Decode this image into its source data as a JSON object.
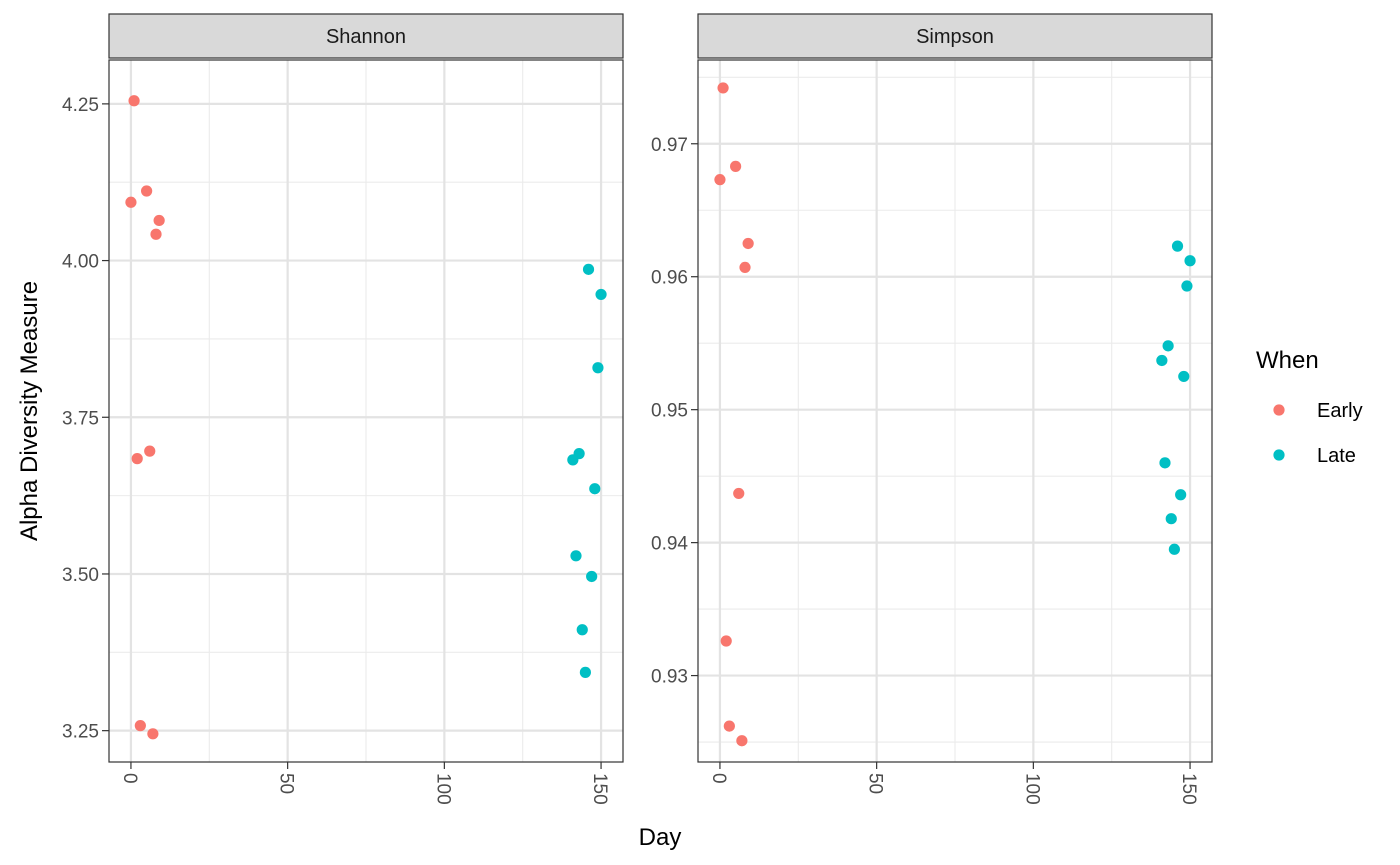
{
  "chart_data": {
    "type": "scatter",
    "xlabel": "Day",
    "ylabel": "Alpha Diversity Measure",
    "legend": {
      "title": "When",
      "position": "right",
      "entries": [
        {
          "label": "Early",
          "color": "#F8766D"
        },
        {
          "label": "Late",
          "color": "#00BFC4"
        }
      ]
    },
    "panels": [
      {
        "strip": "Shannon",
        "xlim": [
          -7,
          157
        ],
        "ylim": [
          3.2,
          4.32
        ],
        "xticks": [
          0,
          50,
          100,
          150
        ],
        "xtick_labels": [
          "0",
          "50",
          "100",
          "150"
        ],
        "yticks": [
          3.25,
          3.5,
          3.75,
          4.0,
          4.25
        ],
        "ytick_labels": [
          "3.25",
          "3.50",
          "3.75",
          "4.00",
          "4.25"
        ],
        "yminor": [
          3.375,
          3.625,
          3.875,
          4.125
        ],
        "series": [
          {
            "name": "Early",
            "color": "#F8766D",
            "points": [
              [
                1,
                4.255
              ],
              [
                0,
                4.093
              ],
              [
                5,
                4.111
              ],
              [
                9,
                4.064
              ],
              [
                8,
                4.042
              ],
              [
                6,
                3.696
              ],
              [
                2,
                3.684
              ],
              [
                3,
                3.258
              ],
              [
                7,
                3.245
              ]
            ]
          },
          {
            "name": "Late",
            "color": "#00BFC4",
            "points": [
              [
                146,
                3.986
              ],
              [
                150,
                3.946
              ],
              [
                149,
                3.829
              ],
              [
                143,
                3.692
              ],
              [
                141,
                3.682
              ],
              [
                148,
                3.636
              ],
              [
                142,
                3.529
              ],
              [
                147,
                3.496
              ],
              [
                144,
                3.411
              ],
              [
                145,
                3.343
              ]
            ]
          }
        ]
      },
      {
        "strip": "Simpson",
        "xlim": [
          -7,
          157
        ],
        "ylim": [
          0.9235,
          0.9763
        ],
        "xticks": [
          0,
          50,
          100,
          150
        ],
        "xtick_labels": [
          "0",
          "50",
          "100",
          "150"
        ],
        "yticks": [
          0.93,
          0.94,
          0.95,
          0.96,
          0.97
        ],
        "ytick_labels": [
          "0.93",
          "0.94",
          "0.95",
          "0.96",
          "0.97"
        ],
        "yminor": [
          0.925,
          0.935,
          0.945,
          0.955,
          0.965,
          0.975
        ],
        "series": [
          {
            "name": "Early",
            "color": "#F8766D",
            "points": [
              [
                1,
                0.9742
              ],
              [
                0,
                0.9673
              ],
              [
                5,
                0.9683
              ],
              [
                9,
                0.9625
              ],
              [
                8,
                0.9607
              ],
              [
                6,
                0.9437
              ],
              [
                2,
                0.9326
              ],
              [
                3,
                0.9262
              ],
              [
                7,
                0.9251
              ]
            ]
          },
          {
            "name": "Late",
            "color": "#00BFC4",
            "points": [
              [
                146,
                0.9623
              ],
              [
                150,
                0.9612
              ],
              [
                149,
                0.9593
              ],
              [
                143,
                0.9548
              ],
              [
                141,
                0.9537
              ],
              [
                148,
                0.9525
              ],
              [
                142,
                0.946
              ],
              [
                147,
                0.9436
              ],
              [
                144,
                0.9418
              ],
              [
                145,
                0.9395
              ]
            ]
          }
        ]
      }
    ]
  }
}
